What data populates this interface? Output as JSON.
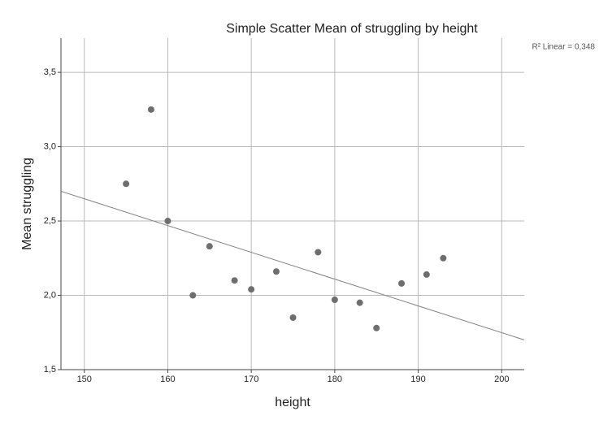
{
  "chart_data": {
    "type": "scatter",
    "title": "Simple Scatter Mean of struggling by height",
    "x_label": "height",
    "y_label": "Mean struggling",
    "annotation": "R² Linear = 0,348",
    "x": [
      155,
      158,
      160,
      163,
      165,
      168,
      170,
      173,
      175,
      178,
      180,
      183,
      185,
      188,
      191,
      193
    ],
    "series": [
      {
        "name": "Mean struggling",
        "color": "#6e6e6e",
        "values": [
          2.75,
          3.25,
          2.5,
          2.0,
          2.33,
          2.1,
          2.04,
          2.16,
          1.85,
          2.29,
          1.97,
          1.95,
          1.78,
          2.08,
          2.14,
          2.25
        ]
      }
    ],
    "fit_line": {
      "x": [
        147.2,
        202.7
      ],
      "y": [
        2.7,
        1.7
      ],
      "color": "#808080"
    },
    "xlim": [
      147.2,
      202.7
    ],
    "xticks": [
      150,
      160,
      170,
      180,
      190,
      200
    ],
    "ylim": [
      1.5,
      3.73
    ],
    "yticks": [
      {
        "value": 1.5,
        "label": "1,5"
      },
      {
        "value": 2.0,
        "label": "2,0"
      },
      {
        "value": 2.5,
        "label": "2,5"
      },
      {
        "value": 3.0,
        "label": "3,0"
      },
      {
        "value": 3.5,
        "label": "3,5"
      }
    ],
    "grid": true
  }
}
